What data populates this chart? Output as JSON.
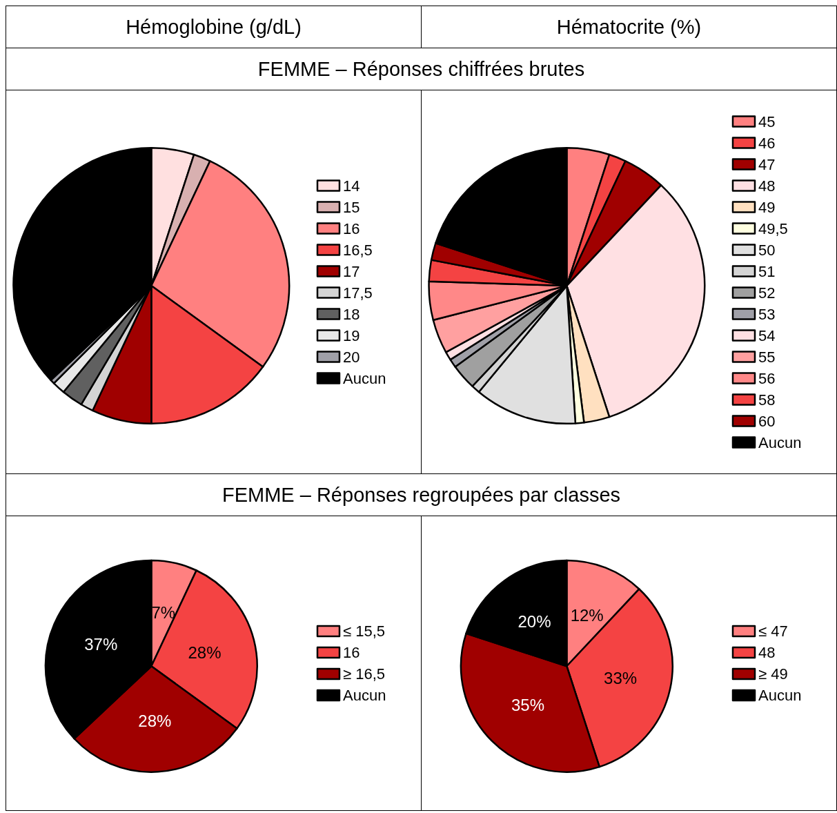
{
  "chart_data": [
    {
      "type": "pie",
      "title": "Hémoglobine (g/dL)",
      "subtitle": "FEMME – Réponses chiffrées brutes",
      "legend": "right",
      "categories": [
        "14",
        "15",
        "16",
        "16,5",
        "17",
        "17,5",
        "18",
        "19",
        "20",
        "Aucun"
      ],
      "values": [
        5,
        2,
        28,
        15,
        7,
        1.5,
        2.5,
        1.5,
        0.5,
        37
      ],
      "colors": [
        "#ffe0e0",
        "#d8b0b0",
        "#ff8080",
        "#f44343",
        "#a00000",
        "#d4d4d4",
        "#606060",
        "#e8e8e8",
        "#a0a0a8",
        "#000000"
      ]
    },
    {
      "type": "pie",
      "title": "Hématocrite (%)",
      "legend": "right",
      "categories": [
        "45",
        "46",
        "47",
        "48",
        "49",
        "49,5",
        "50",
        "51",
        "52",
        "53",
        "54",
        "55",
        "56",
        "58",
        "60",
        "Aucun"
      ],
      "values": [
        5,
        2,
        5,
        33,
        3,
        1,
        12,
        1,
        3,
        1,
        1,
        4,
        4.5,
        2.5,
        2,
        20
      ],
      "colors": [
        "#ff8080",
        "#f44343",
        "#a00000",
        "#ffe0e3",
        "#ffe0c0",
        "#ffffe0",
        "#e0e0e0",
        "#d4d4d4",
        "#a0a0a0",
        "#a0a0a8",
        "#ffe0e3",
        "#ffa0a0",
        "#ff8888",
        "#f44343",
        "#a00000",
        "#000000"
      ]
    },
    {
      "type": "pie",
      "subtitle": "FEMME – Réponses regroupées par classes",
      "legend": "right",
      "categories": [
        "≤ 15,5",
        "16",
        "≥ 16,5",
        "Aucun"
      ],
      "values": [
        7,
        28,
        28,
        37
      ],
      "value_labels": [
        "7%",
        "28%",
        "28%",
        "37%"
      ],
      "colors": [
        "#ff8080",
        "#f44343",
        "#a00000",
        "#000000"
      ]
    },
    {
      "type": "pie",
      "legend": "right",
      "categories": [
        "≤ 47",
        "48",
        "≥ 49",
        "Aucun"
      ],
      "values": [
        12,
        33,
        35,
        20
      ],
      "value_labels": [
        "12%",
        "33%",
        "35%",
        "20%"
      ],
      "colors": [
        "#ff8080",
        "#f44343",
        "#a00000",
        "#000000"
      ]
    }
  ]
}
